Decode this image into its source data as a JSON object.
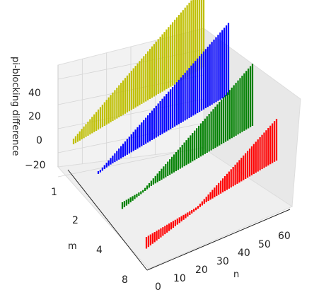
{
  "chart_data": {
    "type": "bar3d",
    "zlabel": "pi-blocking difference",
    "xlabel": "n",
    "ylabel": "m",
    "x_range": [
      0,
      64
    ],
    "z_ticks": [
      "−20",
      "0",
      "20",
      "40"
    ],
    "m_ticks": [
      "1",
      "2",
      "4",
      "8"
    ],
    "n_ticks": [
      "0",
      "10",
      "20",
      "30",
      "40",
      "50",
      "60"
    ],
    "grid": true,
    "series": [
      {
        "m": 1,
        "color": "#bfbf00",
        "n_start": 0,
        "n_end": 63,
        "y_start": 0,
        "y_end": 63
      },
      {
        "m": 2,
        "color": "#0000ff",
        "n_start": 0,
        "n_end": 63,
        "y_start": -5,
        "y_end": 55
      },
      {
        "m": 4,
        "color": "#008000",
        "n_start": 0,
        "n_end": 63,
        "y_start": -14,
        "y_end": 47
      },
      {
        "m": 8,
        "color": "#ff0000",
        "n_start": 0,
        "n_end": 63,
        "y_start": -26,
        "y_end": 30
      }
    ]
  }
}
